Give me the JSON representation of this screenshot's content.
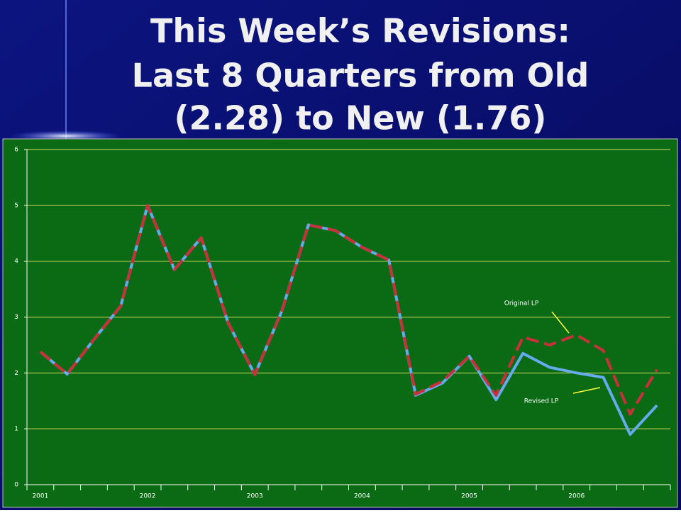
{
  "chart_data": {
    "type": "line",
    "title": [
      "This Week’s Revisions:",
      "Last 8 Quarters from Old",
      "(2.28) to New (1.76)"
    ],
    "categories": [
      "2001",
      null,
      null,
      null,
      "2002",
      null,
      null,
      null,
      "2003",
      null,
      null,
      null,
      "2004",
      null,
      null,
      null,
      "2005",
      null,
      null,
      null,
      "2006",
      null,
      null,
      null
    ],
    "series": [
      {
        "name": "Revised LP",
        "color": "#66aaee",
        "dashed": false,
        "values": [
          2.38,
          1.98,
          2.6,
          3.2,
          5.0,
          3.85,
          4.42,
          2.9,
          1.97,
          3.1,
          4.65,
          4.55,
          4.25,
          4.02,
          1.6,
          1.82,
          2.3,
          1.52,
          2.35,
          2.1,
          2.0,
          1.92,
          0.9,
          1.42
        ]
      },
      {
        "name": "Original LP",
        "color": "#c8313c",
        "dashed": true,
        "values": [
          2.38,
          1.98,
          2.6,
          3.2,
          5.0,
          3.85,
          4.42,
          2.9,
          1.97,
          3.1,
          4.65,
          4.55,
          4.25,
          4.02,
          1.62,
          1.85,
          2.3,
          1.6,
          2.64,
          2.5,
          2.68,
          2.4,
          1.26,
          2.06
        ]
      }
    ],
    "ylim": [
      0,
      6
    ],
    "yticks": [
      0,
      1,
      2,
      3,
      4,
      5,
      6
    ],
    "grid": true
  }
}
